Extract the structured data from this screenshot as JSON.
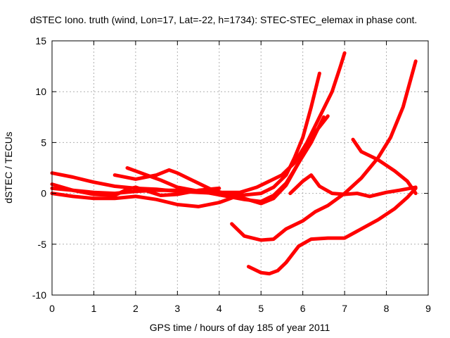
{
  "chart_data": {
    "type": "line",
    "title": "dSTEC Iono. truth (wind, Lon=17, Lat=-22, h=1734): STEC-STEC_elemax in phase cont.",
    "xlabel": "GPS time / hours of day 185 of year 2011",
    "ylabel": "dSTEC  / TECUs",
    "xlim": [
      0,
      9
    ],
    "ylim": [
      -10,
      15
    ],
    "xticks": [
      "0",
      "1",
      "2",
      "3",
      "4",
      "5",
      "6",
      "7",
      "8",
      "9"
    ],
    "yticks": [
      "-10",
      "-5",
      "0",
      "5",
      "10",
      "15"
    ],
    "grid": true,
    "color": "#ff0000",
    "series": [
      {
        "x": [
          0,
          0.5,
          1.0,
          1.5,
          2.0,
          2.5,
          3.0,
          3.5,
          4.0,
          4.5,
          5.0,
          5.3,
          5.6,
          5.8,
          6.0,
          6.2,
          6.4
        ],
        "y": [
          2.0,
          1.6,
          1.1,
          0.7,
          0.5,
          0.4,
          0.2,
          0.1,
          0,
          -0.2,
          0,
          0.6,
          1.8,
          3.5,
          5.5,
          8.5,
          11.8
        ]
      },
      {
        "x": [
          0,
          0.5,
          1.0,
          1.5,
          2.0,
          2.5,
          3.0,
          3.5,
          4.0,
          4.5,
          4.9,
          5.2,
          5.5,
          5.8,
          6.1,
          6.4,
          6.7,
          6.9,
          7.0
        ],
        "y": [
          0.5,
          0.3,
          0.1,
          0,
          0.2,
          0.3,
          0.3,
          0.2,
          0.1,
          0.1,
          0.6,
          1.2,
          1.8,
          3.0,
          5.0,
          7.5,
          10.0,
          12.5,
          13.8
        ]
      },
      {
        "x": [
          1.8,
          2.2,
          2.6,
          3.0,
          3.4,
          3.8,
          4.2,
          4.6,
          5.0,
          5.3,
          5.6,
          5.9,
          6.2,
          6.5
        ],
        "y": [
          2.5,
          1.9,
          1.3,
          0.6,
          0.3,
          0,
          -0.3,
          -0.6,
          -0.8,
          -0.2,
          1.0,
          3.0,
          5.0,
          7.5
        ]
      },
      {
        "x": [
          1.5,
          2.0,
          2.5,
          2.8,
          3.0,
          3.4,
          3.8,
          4.2,
          4.6,
          5.0,
          5.3,
          5.6,
          5.9,
          6.2,
          6.6
        ],
        "y": [
          1.8,
          1.4,
          1.8,
          2.3,
          2.0,
          1.2,
          0.4,
          -0.1,
          -0.5,
          -1.0,
          -0.5,
          0.8,
          3.0,
          5.5,
          7.6
        ]
      },
      {
        "x": [
          0,
          0.5,
          1.0,
          1.5,
          2.0,
          2.5,
          3.0,
          3.5,
          4.0,
          4.4
        ],
        "y": [
          0,
          -0.3,
          -0.5,
          -0.5,
          -0.3,
          -0.6,
          -1.1,
          -1.3,
          -0.9,
          -0.3
        ]
      },
      {
        "x": [
          0,
          0.5,
          1.0,
          1.5,
          1.8,
          2.0,
          2.3,
          2.6,
          3.0,
          3.5,
          4.0
        ],
        "y": [
          0.9,
          0.3,
          -0.1,
          -0.2,
          0.4,
          0.6,
          0.2,
          -0.2,
          -0.1,
          0.3,
          0.5
        ]
      },
      {
        "x": [
          4.3,
          4.6,
          5.0,
          5.3,
          5.6,
          6.0,
          6.3,
          6.6,
          7.0,
          7.4,
          7.8,
          8.1,
          8.4,
          8.7
        ],
        "y": [
          -3.0,
          -4.2,
          -4.6,
          -4.5,
          -3.5,
          -2.7,
          -1.8,
          -1.2,
          0,
          1.5,
          3.5,
          5.5,
          8.5,
          13.0
        ]
      },
      {
        "x": [
          4.7,
          5.0,
          5.2,
          5.4,
          5.6,
          5.9,
          6.2,
          6.6,
          7.0,
          7.4,
          7.8,
          8.2,
          8.5,
          8.7
        ],
        "y": [
          -7.2,
          -7.8,
          -7.9,
          -7.6,
          -6.8,
          -5.2,
          -4.5,
          -4.4,
          -4.4,
          -3.5,
          -2.6,
          -1.5,
          -0.4,
          0.5
        ]
      },
      {
        "x": [
          5.7,
          6.0,
          6.2,
          6.4,
          6.7,
          7.0,
          7.3,
          7.6,
          8.0,
          8.3,
          8.7
        ],
        "y": [
          0,
          1.2,
          1.8,
          0.7,
          0,
          -0.1,
          0,
          -0.3,
          0.1,
          0.3,
          0.6
        ]
      },
      {
        "x": [
          7.2,
          7.4,
          7.8,
          8.2,
          8.5,
          8.7
        ],
        "y": [
          5.3,
          4.1,
          3.3,
          2.2,
          1.2,
          0
        ]
      }
    ]
  }
}
